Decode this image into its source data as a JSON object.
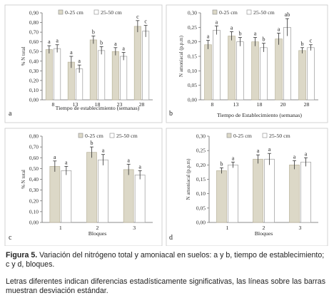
{
  "chart_data": [
    {
      "panel": "a",
      "type": "bar",
      "xlabel": "Tiempo de establecimiento (semanas)",
      "ylabel": "% N total",
      "ylim": [
        0,
        0.9
      ],
      "yticks": [
        "0,00",
        "0,10",
        "0,20",
        "0,30",
        "0,40",
        "0,50",
        "0,60",
        "0,70",
        "0,80",
        "0,90"
      ],
      "categories": [
        "8",
        "13",
        "18",
        "23",
        "28"
      ],
      "legend": [
        "0-25 cm",
        "25-50 cm"
      ],
      "series": [
        {
          "name": "0-25 cm",
          "color": "#dcd8c7",
          "values": [
            0.52,
            0.39,
            0.62,
            0.5,
            0.76
          ],
          "errors": [
            0.04,
            0.06,
            0.04,
            0.04,
            0.06
          ],
          "letters": [
            "a",
            "a",
            "b",
            "a",
            "c"
          ]
        },
        {
          "name": "25-50 cm",
          "color": "#ffffff",
          "values": [
            0.53,
            0.32,
            0.51,
            0.45,
            0.71
          ],
          "errors": [
            0.04,
            0.04,
            0.04,
            0.04,
            0.06
          ],
          "letters": [
            "a",
            "a",
            "b",
            "a",
            "c"
          ]
        }
      ]
    },
    {
      "panel": "b",
      "type": "bar",
      "xlabel": "Tiempo de Establecimiento (semanas)",
      "ylabel": "N amoniacal (p.p.m)",
      "ylim": [
        0,
        0.3
      ],
      "yticks": [
        "0,00",
        "0,05",
        "0,10",
        "0,15",
        "0,20",
        "0,25",
        "0,30"
      ],
      "categories": [
        "8",
        "13",
        "18",
        "20",
        "28"
      ],
      "legend": [
        "0-25 cm",
        "25-50 cm"
      ],
      "series": [
        {
          "name": "0-25 cm",
          "color": "#dcd8c7",
          "values": [
            0.19,
            0.22,
            0.2,
            0.21,
            0.17
          ],
          "errors": [
            0.015,
            0.015,
            0.015,
            0.02,
            0.01
          ],
          "letters": [
            "a",
            "a",
            "a",
            "a",
            "b"
          ]
        },
        {
          "name": "25-50 cm",
          "color": "#ffffff",
          "values": [
            0.24,
            0.2,
            0.18,
            0.25,
            0.18
          ],
          "errors": [
            0.015,
            0.015,
            0.015,
            0.03,
            0.01
          ],
          "letters": [
            "a",
            "b",
            "b",
            "ab",
            "c"
          ]
        }
      ]
    },
    {
      "panel": "c",
      "type": "bar",
      "xlabel": "Bloques",
      "ylabel": "% N total",
      "ylim": [
        0,
        0.8
      ],
      "yticks": [
        "0,00",
        "0,10",
        "0,20",
        "0,30",
        "0,40",
        "0,50",
        "0,60",
        "0,70",
        "0,80"
      ],
      "categories": [
        "1",
        "2",
        "3"
      ],
      "legend": [
        "0-25 cm",
        "25-50 cm"
      ],
      "series": [
        {
          "name": "0-25 cm",
          "color": "#dcd8c7",
          "values": [
            0.52,
            0.65,
            0.49
          ],
          "errors": [
            0.05,
            0.05,
            0.05
          ],
          "letters": [
            "a",
            "b",
            "a"
          ]
        },
        {
          "name": "25-50 cm",
          "color": "#ffffff",
          "values": [
            0.48,
            0.58,
            0.44
          ],
          "errors": [
            0.04,
            0.05,
            0.04
          ],
          "letters": [
            "a",
            "a",
            "a"
          ]
        }
      ]
    },
    {
      "panel": "d",
      "type": "bar",
      "xlabel": "Bloques",
      "ylabel": "N amoniacal (p.p.m)",
      "ylim": [
        0,
        0.3
      ],
      "yticks": [
        "0,00",
        "0,05",
        "0,10",
        "0,15",
        "0,20",
        "0,25",
        "0,30"
      ],
      "categories": [
        "1",
        "2",
        "3"
      ],
      "legend": [
        "0-25 cm",
        "25-50 cm"
      ],
      "series": [
        {
          "name": "0-25 cm",
          "color": "#dcd8c7",
          "values": [
            0.18,
            0.22,
            0.2
          ],
          "errors": [
            0.01,
            0.015,
            0.015
          ],
          "letters": [
            "b",
            "a",
            "a"
          ]
        },
        {
          "name": "25-50 cm",
          "color": "#ffffff",
          "values": [
            0.2,
            0.22,
            0.21
          ],
          "errors": [
            0.01,
            0.02,
            0.015
          ],
          "letters": [
            "a",
            "a",
            "a"
          ]
        }
      ]
    }
  ],
  "caption": {
    "label": "Figura 5.",
    "text": " Variación del nitrógeno total  y amoniacal en suelos: a y b, tiempo de establecimiento; c y d, bloques.",
    "note": "Letras diferentes indican diferencias estadísticamente significativas, las líneas sobre las barras muestran desviación estándar."
  }
}
